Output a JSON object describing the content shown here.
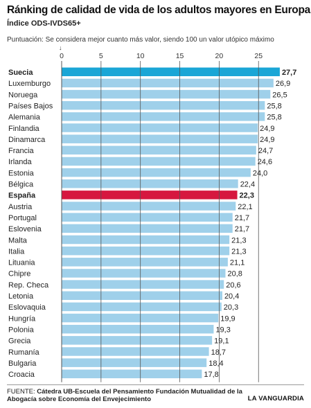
{
  "title": "Ránking de calidad de vida de los adultos mayores en Europa",
  "subtitle": "Índice ODS-IVDS65+",
  "unit_note": "Puntuación: Se considera mejor cuanto más valor, siendo 100 un valor utópico máximo",
  "arrow": "↓",
  "footer": {
    "label": "FUENTE:",
    "source": "Cátedra UB-Escuela del Pensamiento Fundación Mutualidad de la Abogacía sobre Economía del Envejecimiento"
  },
  "brand": "LA VANGUARDIA",
  "chart_data": {
    "type": "bar",
    "orientation": "horizontal",
    "categories": [
      "Suecia",
      "Luxemburgo",
      "Noruega",
      "Países Bajos",
      "Alemania",
      "Finlandia",
      "Dinamarca",
      "Francia",
      "Irlanda",
      "Estonia",
      "Bélgica",
      "España",
      "Austria",
      "Portugal",
      "Eslovenia",
      "Malta",
      "Italia",
      "Lituania",
      "Chipre",
      "Rep. Checa",
      "Letonia",
      "Eslovaquia",
      "Hungría",
      "Polonia",
      "Grecia",
      "Rumanía",
      "Bulgaria",
      "Croacia"
    ],
    "values": [
      27.7,
      26.9,
      26.5,
      25.8,
      25.8,
      24.9,
      24.9,
      24.7,
      24.6,
      24.0,
      22.4,
      22.3,
      22.1,
      21.7,
      21.7,
      21.3,
      21.3,
      21.1,
      20.8,
      20.6,
      20.4,
      20.3,
      19.9,
      19.3,
      19.1,
      18.7,
      18.4,
      17.8
    ],
    "value_labels": [
      "27,7",
      "26,9",
      "26,5",
      "25,8",
      "25,8",
      "24,9",
      "24,9",
      "24,7",
      "24,6",
      "24,0",
      "22,4",
      "22,3",
      "22,1",
      "21,7",
      "21,7",
      "21,3",
      "21,3",
      "21,1",
      "20,8",
      "20,6",
      "20,4",
      "20,3",
      "19,9",
      "19,3",
      "19,1",
      "18,7",
      "18,4",
      "17,8"
    ],
    "highlighted": {
      "Suecia": "#1aa6d6",
      "España": "#d6173f"
    },
    "bold_categories": [
      "Suecia",
      "España"
    ],
    "bar_color": "#9fd0ea",
    "gridline_color": "#555555",
    "xlim": [
      0,
      28
    ],
    "xticks": [
      0,
      5,
      10,
      15,
      20,
      25
    ],
    "grid": true
  }
}
